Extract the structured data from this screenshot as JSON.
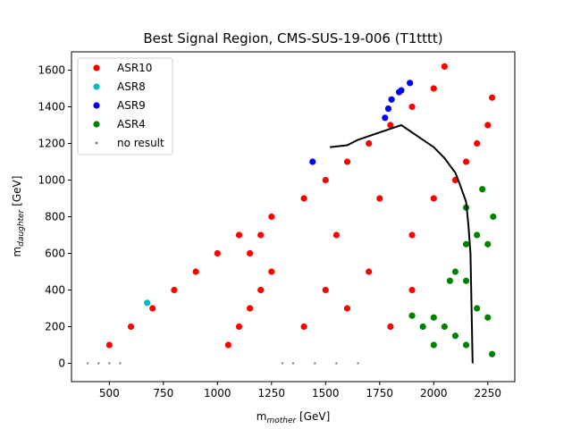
{
  "chart_data": {
    "type": "scatter",
    "title": "Best Signal Region, CMS-SUS-19-006 (T1tttt)",
    "xlabel_main": "m",
    "xlabel_sub": "mother",
    "xlabel_unit": " [GeV]",
    "ylabel_main": "m",
    "ylabel_sub": "daughter",
    "ylabel_unit": " [GeV]",
    "xlim": [
      325,
      2375
    ],
    "ylim": [
      -100,
      1700
    ],
    "xticks": [
      500,
      750,
      1000,
      1250,
      1500,
      1750,
      2000,
      2250
    ],
    "yticks": [
      0,
      200,
      400,
      600,
      800,
      1000,
      1200,
      1400,
      1600
    ],
    "grid": false,
    "legend_position": "top-left",
    "series": [
      {
        "name": "ASR10",
        "color": "#ff0000",
        "marker": "dot",
        "region_description": "dense red scatter filling the triangular region below the diagonal, with a very dense core at m_mother 1050-1300 GeV",
        "points": [
          [
            1050,
            100
          ],
          [
            1100,
            200
          ],
          [
            1150,
            300
          ],
          [
            1200,
            400
          ],
          [
            1250,
            500
          ],
          [
            1150,
            600
          ],
          [
            1200,
            700
          ],
          [
            1250,
            800
          ],
          [
            500,
            100
          ],
          [
            600,
            200
          ],
          [
            700,
            300
          ],
          [
            800,
            400
          ],
          [
            900,
            500
          ],
          [
            1000,
            600
          ],
          [
            1100,
            700
          ],
          [
            1400,
            900
          ],
          [
            1500,
            1000
          ],
          [
            1600,
            1100
          ],
          [
            1700,
            1200
          ],
          [
            1800,
            1300
          ],
          [
            1900,
            1400
          ],
          [
            2000,
            1500
          ],
          [
            2050,
            1620
          ],
          [
            1500,
            400
          ],
          [
            1700,
            500
          ],
          [
            1900,
            700
          ],
          [
            2000,
            900
          ],
          [
            2100,
            1000
          ],
          [
            2150,
            1100
          ],
          [
            2200,
            1200
          ],
          [
            2250,
            1300
          ],
          [
            2270,
            1450
          ],
          [
            1400,
            200
          ],
          [
            1600,
            300
          ],
          [
            1800,
            200
          ],
          [
            1900,
            400
          ],
          [
            1550,
            700
          ],
          [
            1750,
            900
          ]
        ]
      },
      {
        "name": "ASR8",
        "color": "#00bfbf",
        "marker": "dot",
        "points": [
          [
            675,
            330
          ]
        ]
      },
      {
        "name": "ASR9",
        "color": "#0000ff",
        "marker": "dot",
        "points": [
          [
            1440,
            1100
          ],
          [
            1775,
            1340
          ],
          [
            1790,
            1390
          ],
          [
            1805,
            1440
          ],
          [
            1840,
            1480
          ],
          [
            1850,
            1490
          ],
          [
            1890,
            1530
          ]
        ]
      },
      {
        "name": "ASR4",
        "color": "#008000",
        "marker": "dot",
        "points": [
          [
            1900,
            260
          ],
          [
            1950,
            200
          ],
          [
            2000,
            100
          ],
          [
            2000,
            250
          ],
          [
            2050,
            200
          ],
          [
            2100,
            150
          ],
          [
            2150,
            100
          ],
          [
            2075,
            450
          ],
          [
            2100,
            500
          ],
          [
            2150,
            450
          ],
          [
            2200,
            300
          ],
          [
            2250,
            250
          ],
          [
            2270,
            50
          ],
          [
            2150,
            650
          ],
          [
            2200,
            700
          ],
          [
            2250,
            650
          ],
          [
            2275,
            800
          ],
          [
            2150,
            850
          ],
          [
            2225,
            950
          ]
        ]
      },
      {
        "name": "no result",
        "color": "#808080",
        "marker": "small-dot",
        "points": [
          [
            400,
            0
          ],
          [
            450,
            0
          ],
          [
            500,
            0
          ],
          [
            550,
            0
          ],
          [
            1450,
            0
          ],
          [
            1550,
            0
          ],
          [
            1650,
            0
          ],
          [
            1350,
            0
          ],
          [
            1300,
            0
          ]
        ]
      }
    ],
    "exclusion_curve": {
      "color": "#000000",
      "points": [
        [
          1520,
          1180
        ],
        [
          1600,
          1190
        ],
        [
          1650,
          1220
        ],
        [
          1700,
          1240
        ],
        [
          1800,
          1280
        ],
        [
          1850,
          1300
        ],
        [
          1900,
          1260
        ],
        [
          1950,
          1220
        ],
        [
          2000,
          1180
        ],
        [
          2050,
          1120
        ],
        [
          2100,
          1040
        ],
        [
          2120,
          980
        ],
        [
          2150,
          880
        ],
        [
          2160,
          760
        ],
        [
          2170,
          600
        ],
        [
          2175,
          300
        ],
        [
          2180,
          0
        ]
      ]
    }
  }
}
